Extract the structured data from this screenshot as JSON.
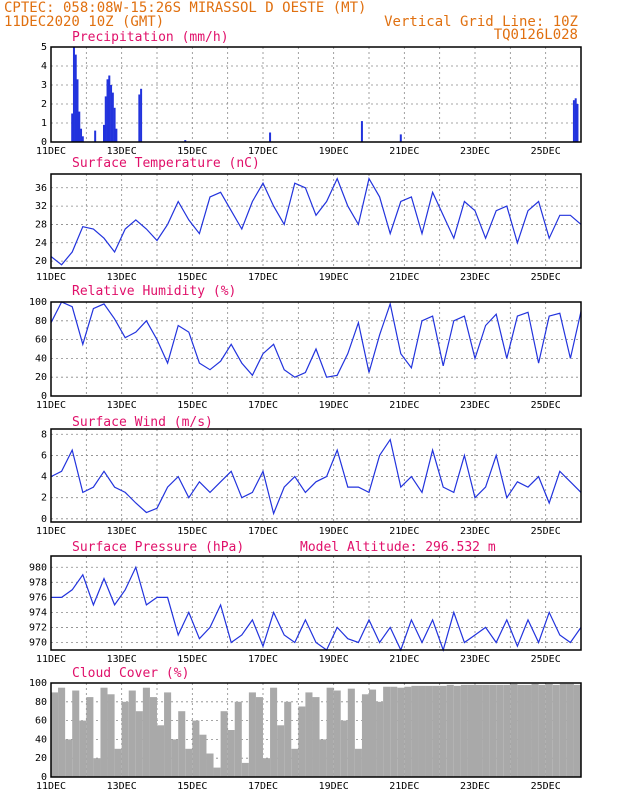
{
  "header": {
    "line1_left": "CPTEC:   058:08W-15:26S   MIRASSOL D OESTE (MT)",
    "line2_left": "11DEC2020 10Z (GMT)",
    "line2_right": "Vertical Grid Line: 10Z",
    "line3_right": "TQ0126L028"
  },
  "x_tick_labels": [
    "11DEC",
    "13DEC",
    "15DEC",
    "17DEC",
    "19DEC",
    "21DEC",
    "23DEC",
    "25DEC"
  ],
  "x_tick_days": [
    0,
    2,
    4,
    6,
    8,
    10,
    12,
    14
  ],
  "x_range_days": [
    0,
    15
  ],
  "colors": {
    "line": "#2233dd",
    "bar": "#2233dd",
    "cloud": "#a9a9a9",
    "title": "#e0106a",
    "header": "#e07010"
  },
  "chart_data": [
    {
      "type": "bar",
      "title": "Precipitation (mm/h)",
      "ylim": [
        0,
        5
      ],
      "yticks": [
        0,
        1,
        2,
        3,
        4,
        5
      ],
      "x": [
        0.6,
        0.65,
        0.7,
        0.75,
        0.8,
        0.85,
        0.9,
        1.25,
        1.5,
        1.55,
        1.6,
        1.65,
        1.7,
        1.75,
        1.8,
        1.85,
        2.5,
        2.55,
        3.8,
        6.2,
        8.8,
        9.9,
        14.8,
        14.85,
        14.9
      ],
      "values": [
        1.5,
        5.0,
        4.6,
        3.3,
        1.6,
        0.7,
        0.3,
        0.6,
        0.9,
        2.4,
        3.3,
        3.5,
        3.0,
        2.6,
        1.8,
        0.7,
        2.5,
        2.8,
        0.1,
        0.5,
        1.1,
        0.4,
        2.2,
        2.3,
        2.0
      ]
    },
    {
      "type": "line",
      "title": "Surface Temperature (nC)",
      "ylim": [
        18.5,
        39
      ],
      "yticks": [
        20,
        24,
        28,
        32,
        36
      ],
      "x": [
        0,
        0.3,
        0.6,
        0.9,
        1.2,
        1.5,
        1.8,
        2.1,
        2.4,
        2.7,
        3.0,
        3.3,
        3.6,
        3.9,
        4.2,
        4.5,
        4.8,
        5.1,
        5.4,
        5.7,
        6.0,
        6.3,
        6.6,
        6.9,
        7.2,
        7.5,
        7.8,
        8.1,
        8.4,
        8.7,
        9.0,
        9.3,
        9.6,
        9.9,
        10.2,
        10.5,
        10.8,
        11.1,
        11.4,
        11.7,
        12.0,
        12.3,
        12.6,
        12.9,
        13.2,
        13.5,
        13.8,
        14.1,
        14.4,
        14.7,
        15.0
      ],
      "values": [
        21,
        19.2,
        22,
        27.5,
        27,
        25,
        22,
        27,
        29,
        27,
        24.5,
        28,
        33,
        29,
        26,
        34,
        35,
        31,
        27,
        33,
        37,
        32,
        28,
        37,
        36,
        30,
        33,
        38,
        32,
        28,
        38,
        34,
        26,
        33,
        34,
        26,
        35,
        30,
        25,
        33,
        31,
        25,
        31,
        32,
        24,
        31,
        33,
        25,
        30,
        30,
        28
      ]
    },
    {
      "type": "line",
      "title": "Relative Humidity (%)",
      "ylim": [
        0,
        100
      ],
      "yticks": [
        0,
        20,
        40,
        60,
        80,
        100
      ],
      "x": [
        0,
        0.3,
        0.6,
        0.9,
        1.2,
        1.5,
        1.8,
        2.1,
        2.4,
        2.7,
        3.0,
        3.3,
        3.6,
        3.9,
        4.2,
        4.5,
        4.8,
        5.1,
        5.4,
        5.7,
        6.0,
        6.3,
        6.6,
        6.9,
        7.2,
        7.5,
        7.8,
        8.1,
        8.4,
        8.7,
        9.0,
        9.3,
        9.6,
        9.9,
        10.2,
        10.5,
        10.8,
        11.1,
        11.4,
        11.7,
        12.0,
        12.3,
        12.6,
        12.9,
        13.2,
        13.5,
        13.8,
        14.1,
        14.4,
        14.7,
        15.0
      ],
      "values": [
        78,
        100,
        95,
        55,
        93,
        98,
        82,
        62,
        68,
        80,
        60,
        35,
        75,
        68,
        35,
        28,
        37,
        55,
        35,
        22,
        45,
        55,
        28,
        20,
        25,
        50,
        20,
        22,
        45,
        78,
        25,
        65,
        98,
        45,
        30,
        80,
        85,
        32,
        80,
        85,
        40,
        75,
        87,
        40,
        85,
        89,
        35,
        85,
        88,
        40,
        90
      ]
    },
    {
      "type": "line",
      "title": "Surface Wind (m/s)",
      "ylim": [
        -0.3,
        8.5
      ],
      "yticks": [
        0,
        2,
        4,
        6,
        8
      ],
      "x": [
        0,
        0.3,
        0.6,
        0.9,
        1.2,
        1.5,
        1.8,
        2.1,
        2.4,
        2.7,
        3.0,
        3.3,
        3.6,
        3.9,
        4.2,
        4.5,
        4.8,
        5.1,
        5.4,
        5.7,
        6.0,
        6.3,
        6.6,
        6.9,
        7.2,
        7.5,
        7.8,
        8.1,
        8.4,
        8.7,
        9.0,
        9.3,
        9.6,
        9.9,
        10.2,
        10.5,
        10.8,
        11.1,
        11.4,
        11.7,
        12.0,
        12.3,
        12.6,
        12.9,
        13.2,
        13.5,
        13.8,
        14.1,
        14.4,
        14.7,
        15.0
      ],
      "values": [
        4,
        4.5,
        6.5,
        2.5,
        3,
        4.5,
        3,
        2.5,
        1.5,
        0.6,
        1,
        3,
        4,
        2,
        3.5,
        2.5,
        3.5,
        4.5,
        2,
        2.5,
        4.5,
        0.5,
        3,
        4,
        2.5,
        3.5,
        4,
        6.5,
        3,
        3,
        2.5,
        6,
        7.5,
        3,
        4,
        2.5,
        6.5,
        3,
        2.5,
        6,
        2,
        3,
        6,
        2,
        3.5,
        3,
        4,
        1.5,
        4.5,
        3.5,
        2.5
      ]
    },
    {
      "type": "line",
      "title": "Surface Pressure (hPa)",
      "annotation": "Model Altitude: 296.532  m",
      "ylim": [
        969,
        981.5
      ],
      "yticks": [
        970,
        972,
        974,
        976,
        978,
        980
      ],
      "x": [
        0,
        0.3,
        0.6,
        0.9,
        1.2,
        1.5,
        1.8,
        2.1,
        2.4,
        2.7,
        3.0,
        3.3,
        3.6,
        3.9,
        4.2,
        4.5,
        4.8,
        5.1,
        5.4,
        5.7,
        6.0,
        6.3,
        6.6,
        6.9,
        7.2,
        7.5,
        7.8,
        8.1,
        8.4,
        8.7,
        9.0,
        9.3,
        9.6,
        9.9,
        10.2,
        10.5,
        10.8,
        11.1,
        11.4,
        11.7,
        12.0,
        12.3,
        12.6,
        12.9,
        13.2,
        13.5,
        13.8,
        14.1,
        14.4,
        14.7,
        15.0
      ],
      "values": [
        976,
        976,
        977,
        979,
        975,
        978.5,
        975,
        977,
        980,
        975,
        976,
        976,
        971,
        974,
        970.5,
        972,
        975,
        970,
        971,
        973,
        969.5,
        974,
        971,
        970,
        973,
        970,
        969,
        972,
        970.5,
        970,
        973,
        970,
        972,
        969,
        973,
        970,
        973,
        969,
        974,
        970,
        971,
        972,
        970,
        973,
        969.5,
        973,
        970,
        974,
        971,
        970,
        972
      ]
    },
    {
      "type": "bar",
      "title": "Cloud Cover (%)",
      "ylim": [
        0,
        100
      ],
      "yticks": [
        0,
        20,
        40,
        60,
        80,
        100
      ],
      "x": [
        0.1,
        0.3,
        0.5,
        0.7,
        0.9,
        1.1,
        1.3,
        1.5,
        1.7,
        1.9,
        2.1,
        2.3,
        2.5,
        2.7,
        2.9,
        3.1,
        3.3,
        3.5,
        3.7,
        3.9,
        4.1,
        4.3,
        4.5,
        4.7,
        4.9,
        5.1,
        5.3,
        5.5,
        5.7,
        5.9,
        6.1,
        6.3,
        6.5,
        6.7,
        6.9,
        7.1,
        7.3,
        7.5,
        7.7,
        7.9,
        8.1,
        8.3,
        8.5,
        8.7,
        8.9,
        9.1,
        9.3,
        9.5,
        9.7,
        9.9,
        10.1,
        10.3,
        10.5,
        10.7,
        10.9,
        11.1,
        11.3,
        11.5,
        11.7,
        11.9,
        12.1,
        12.3,
        12.5,
        12.7,
        12.9,
        13.1,
        13.3,
        13.5,
        13.7,
        13.9,
        14.1,
        14.3,
        14.5,
        14.7,
        14.9
      ],
      "values": [
        90,
        95,
        40,
        92,
        60,
        85,
        20,
        95,
        88,
        30,
        80,
        92,
        70,
        95,
        85,
        55,
        90,
        40,
        70,
        30,
        60,
        45,
        25,
        10,
        70,
        50,
        80,
        15,
        90,
        85,
        20,
        95,
        55,
        80,
        30,
        75,
        90,
        85,
        40,
        95,
        92,
        60,
        94,
        30,
        88,
        93,
        80,
        96,
        96,
        95,
        96,
        97,
        97,
        97,
        97,
        97,
        98,
        97,
        98,
        98,
        98,
        98,
        98,
        98,
        98,
        99,
        98,
        98,
        99,
        98,
        99,
        98,
        99,
        99,
        98
      ]
    }
  ]
}
